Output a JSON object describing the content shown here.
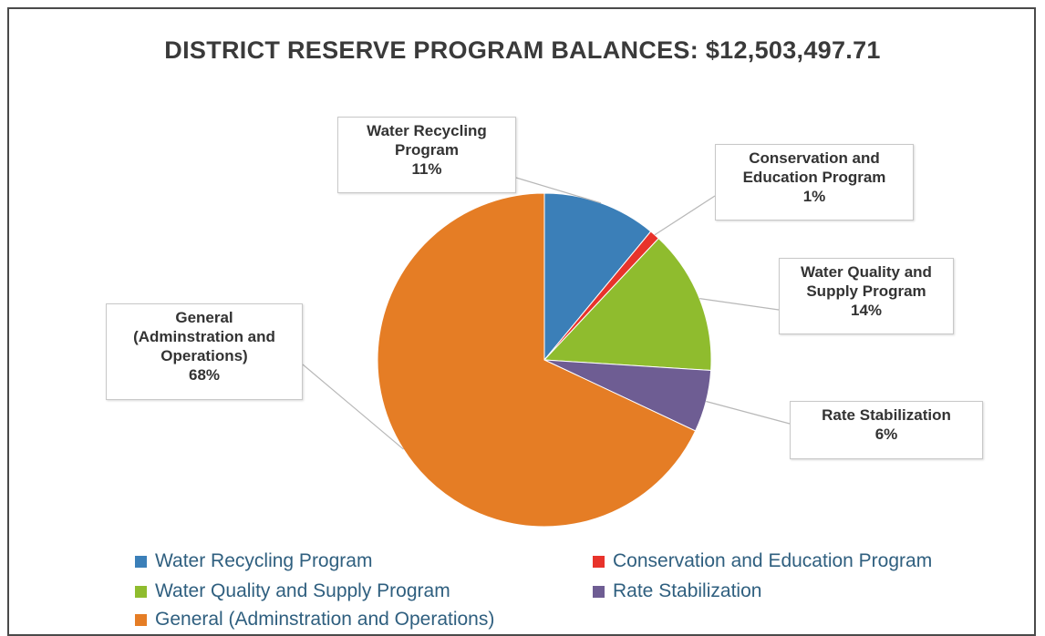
{
  "chart_data": {
    "type": "pie",
    "title": "DISTRICT RESERVE PROGRAM BALANCES: $12,503,497.71",
    "slices": [
      {
        "name": "Water Recycling Program",
        "label_text": "Water Recycling\nProgram\n11%",
        "value": 11,
        "color": "#3b7fb8"
      },
      {
        "name": "Conservation and Education Program",
        "label_text": "Conservation and\nEducation Program\n1%",
        "value": 1,
        "color": "#e8332b"
      },
      {
        "name": "Water Quality and Supply Program",
        "label_text": "Water Quality and\nSupply Program\n14%",
        "value": 14,
        "color": "#8fbc2e"
      },
      {
        "name": "Rate Stabilization",
        "label_text": "Rate Stabilization\n6%",
        "value": 6,
        "color": "#6e5d93"
      },
      {
        "name": "General (Adminstration and Operations)",
        "label_text": "General\n(Adminstration and\nOperations)\n68%",
        "value": 68,
        "color": "#e57d25"
      }
    ],
    "legend_position": "bottom"
  }
}
